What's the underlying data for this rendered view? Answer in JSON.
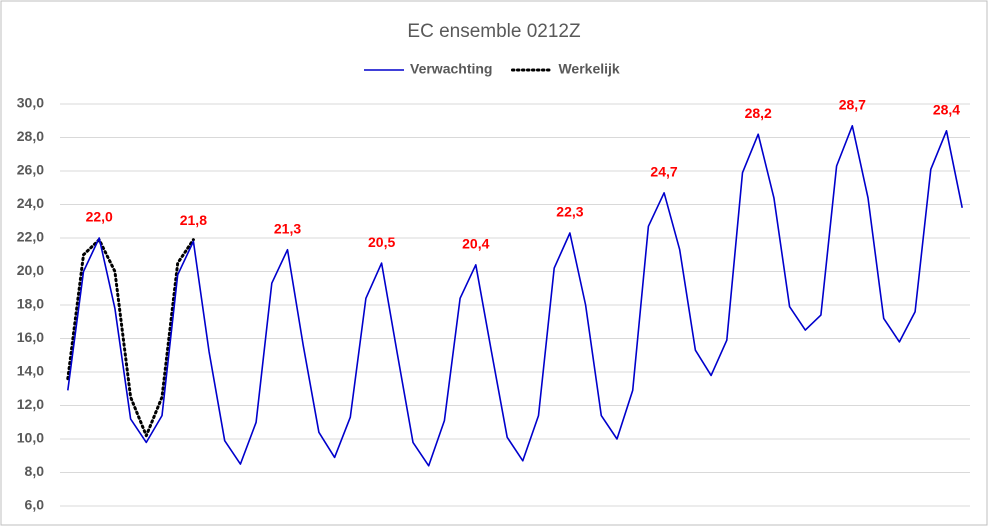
{
  "chart_data": {
    "type": "line",
    "title": "EC ensemble 0212Z",
    "categories": [
      null,
      null,
      null,
      null,
      null,
      null,
      null,
      null,
      null,
      null,
      null,
      null,
      null,
      null,
      null,
      null,
      null,
      null,
      null,
      null,
      null,
      null,
      null,
      null,
      null,
      null,
      null,
      null,
      null,
      null,
      null,
      null,
      null,
      null,
      null,
      null,
      null,
      null,
      null,
      null,
      null,
      null,
      null,
      null,
      null,
      null,
      null,
      null,
      null,
      null,
      null,
      null,
      null,
      null,
      null,
      null,
      null,
      null
    ],
    "series": [
      {
        "name": "Verwachting",
        "color": "#0000cc",
        "style": "solid",
        "values": [
          12.9,
          20.0,
          22.0,
          17.8,
          11.2,
          9.8,
          11.4,
          19.8,
          21.8,
          15.2,
          9.9,
          8.5,
          11.0,
          19.3,
          21.3,
          15.6,
          10.4,
          8.9,
          11.3,
          18.4,
          20.5,
          15.1,
          9.8,
          8.4,
          11.1,
          18.4,
          20.4,
          15.2,
          10.1,
          8.7,
          11.4,
          20.2,
          22.3,
          18.0,
          11.4,
          10.0,
          12.9,
          22.7,
          24.7,
          21.3,
          15.3,
          13.8,
          15.9,
          25.9,
          28.2,
          24.4,
          17.9,
          16.5,
          17.4,
          26.3,
          28.7,
          24.4,
          17.2,
          15.8,
          17.6,
          26.1,
          28.4,
          23.8
        ],
        "value_labels": [
          null,
          null,
          "22,0",
          null,
          null,
          null,
          null,
          null,
          "21,8",
          null,
          null,
          null,
          null,
          null,
          "21,3",
          null,
          null,
          null,
          null,
          null,
          "20,5",
          null,
          null,
          null,
          null,
          null,
          "20,4",
          null,
          null,
          null,
          null,
          null,
          "22,3",
          null,
          null,
          null,
          null,
          null,
          "24,7",
          null,
          null,
          null,
          null,
          null,
          "28,2",
          null,
          null,
          null,
          null,
          null,
          "28,7",
          null,
          null,
          null,
          null,
          null,
          "28,4",
          null
        ]
      },
      {
        "name": "Werkelijk",
        "color": "#000000",
        "style": "dotted",
        "values": [
          13.6,
          21.0,
          21.9,
          20.0,
          12.5,
          10.2,
          12.5,
          20.5,
          21.9,
          null,
          null,
          null,
          null,
          null,
          null,
          null,
          null,
          null,
          null,
          null,
          null,
          null,
          null,
          null,
          null,
          null,
          null,
          null,
          null,
          null,
          null,
          null,
          null,
          null,
          null,
          null,
          null,
          null,
          null,
          null,
          null,
          null,
          null,
          null,
          null,
          null,
          null,
          null,
          null,
          null,
          null,
          null,
          null,
          null,
          null,
          null,
          null,
          null
        ]
      }
    ],
    "label_color": "#ff0000",
    "ylim": [
      6,
      30
    ],
    "yticks": [
      {
        "value": 6,
        "label": "6,0"
      },
      {
        "value": 8,
        "label": "8,0"
      },
      {
        "value": 10,
        "label": "10,0"
      },
      {
        "value": 12,
        "label": "12,0"
      },
      {
        "value": 14,
        "label": "14,0"
      },
      {
        "value": 16,
        "label": "16,0"
      },
      {
        "value": 18,
        "label": "18,0"
      },
      {
        "value": 20,
        "label": "20,0"
      },
      {
        "value": 22,
        "label": "22,0"
      },
      {
        "value": 24,
        "label": "24,0"
      },
      {
        "value": 26,
        "label": "26,0"
      },
      {
        "value": 28,
        "label": "28,0"
      },
      {
        "value": 30,
        "label": "30,0"
      }
    ],
    "grid": true,
    "legend": "top"
  }
}
